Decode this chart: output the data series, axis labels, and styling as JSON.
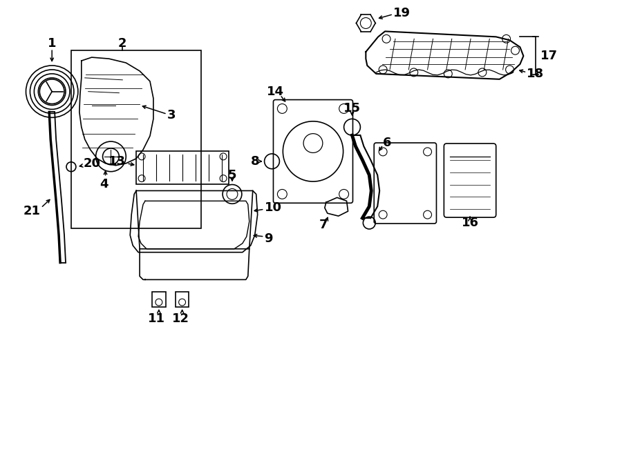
{
  "bg_color": "#ffffff",
  "fig_width": 9.0,
  "fig_height": 6.61,
  "dpi": 100,
  "lw": 1.2,
  "label_fontsize": 13
}
